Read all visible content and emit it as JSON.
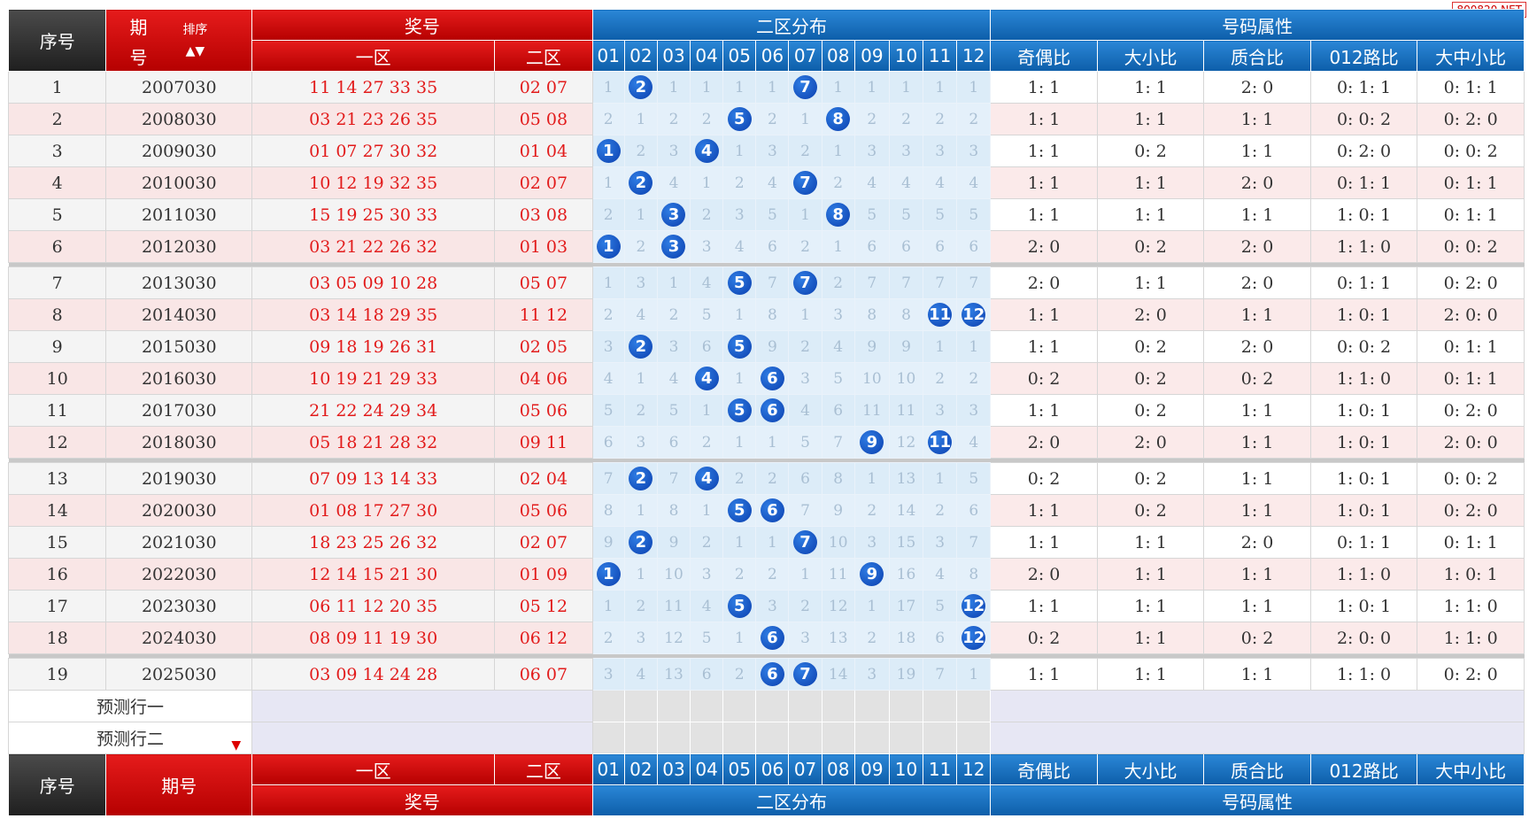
{
  "watermark": "800820.NET",
  "header": {
    "seq": "序号",
    "issue_top": "期",
    "issue_bottom": "号",
    "sort": "排序",
    "prize": "奖号",
    "zone1": "一区",
    "zone2": "二区",
    "dist": "二区分布",
    "attr": "号码属性",
    "cols": [
      "01",
      "02",
      "03",
      "04",
      "05",
      "06",
      "07",
      "08",
      "09",
      "10",
      "11",
      "12"
    ],
    "attr_cols": [
      "奇偶比",
      "大小比",
      "质合比",
      "012路比",
      "大中小比"
    ]
  },
  "footer": {
    "seq": "序号",
    "issue": "期号",
    "zone1": "一区",
    "zone2": "二区",
    "prize": "奖号",
    "dist": "二区分布",
    "attr": "号码属性"
  },
  "prediction_rows": [
    "预测行一",
    "预测行二"
  ],
  "chart_data": {
    "type": "table",
    "rows": [
      {
        "seq": "1",
        "issue": "2007030",
        "zone1": "11 14 27 33 35",
        "zone2": "02 07",
        "dist": [
          "1",
          "②",
          "1",
          "1",
          "1",
          "1",
          "⑦",
          "1",
          "1",
          "1",
          "1",
          "1"
        ],
        "attrs": [
          "1: 1",
          "1: 1",
          "2: 0",
          "0: 1: 1",
          "0: 1: 1"
        ]
      },
      {
        "seq": "2",
        "issue": "2008030",
        "zone1": "03 21 23 26 35",
        "zone2": "05 08",
        "dist": [
          "2",
          "1",
          "2",
          "2",
          "⑤",
          "2",
          "1",
          "⑧",
          "2",
          "2",
          "2",
          "2"
        ],
        "attrs": [
          "1: 1",
          "1: 1",
          "1: 1",
          "0: 0: 2",
          "0: 2: 0"
        ]
      },
      {
        "seq": "3",
        "issue": "2009030",
        "zone1": "01 07 27 30 32",
        "zone2": "01 04",
        "dist": [
          "①",
          "2",
          "3",
          "④",
          "1",
          "3",
          "2",
          "1",
          "3",
          "3",
          "3",
          "3"
        ],
        "attrs": [
          "1: 1",
          "0: 2",
          "1: 1",
          "0: 2: 0",
          "0: 0: 2"
        ]
      },
      {
        "seq": "4",
        "issue": "2010030",
        "zone1": "10 12 19 32 35",
        "zone2": "02 07",
        "dist": [
          "1",
          "②",
          "4",
          "1",
          "2",
          "4",
          "⑦",
          "2",
          "4",
          "4",
          "4",
          "4"
        ],
        "attrs": [
          "1: 1",
          "1: 1",
          "2: 0",
          "0: 1: 1",
          "0: 1: 1"
        ]
      },
      {
        "seq": "5",
        "issue": "2011030",
        "zone1": "15 19 25 30 33",
        "zone2": "03 08",
        "dist": [
          "2",
          "1",
          "③",
          "2",
          "3",
          "5",
          "1",
          "⑧",
          "5",
          "5",
          "5",
          "5"
        ],
        "attrs": [
          "1: 1",
          "1: 1",
          "1: 1",
          "1: 0: 1",
          "0: 1: 1"
        ]
      },
      {
        "seq": "6",
        "issue": "2012030",
        "zone1": "03 21 22 26 32",
        "zone2": "01 03",
        "dist": [
          "①",
          "2",
          "③",
          "3",
          "4",
          "6",
          "2",
          "1",
          "6",
          "6",
          "6",
          "6"
        ],
        "attrs": [
          "2: 0",
          "0: 2",
          "2: 0",
          "1: 1: 0",
          "0: 0: 2"
        ]
      },
      {
        "seq": "7",
        "issue": "2013030",
        "zone1": "03 05 09 10 28",
        "zone2": "05 07",
        "dist": [
          "1",
          "3",
          "1",
          "4",
          "⑤",
          "7",
          "⑦",
          "2",
          "7",
          "7",
          "7",
          "7"
        ],
        "attrs": [
          "2: 0",
          "1: 1",
          "2: 0",
          "0: 1: 1",
          "0: 2: 0"
        ]
      },
      {
        "seq": "8",
        "issue": "2014030",
        "zone1": "03 14 18 29 35",
        "zone2": "11 12",
        "dist": [
          "2",
          "4",
          "2",
          "5",
          "1",
          "8",
          "1",
          "3",
          "8",
          "8",
          "⑪",
          "⑫"
        ],
        "attrs": [
          "1: 1",
          "2: 0",
          "1: 1",
          "1: 0: 1",
          "2: 0: 0"
        ]
      },
      {
        "seq": "9",
        "issue": "2015030",
        "zone1": "09 18 19 26 31",
        "zone2": "02 05",
        "dist": [
          "3",
          "②",
          "3",
          "6",
          "⑤",
          "9",
          "2",
          "4",
          "9",
          "9",
          "1",
          "1"
        ],
        "attrs": [
          "1: 1",
          "0: 2",
          "2: 0",
          "0: 0: 2",
          "0: 1: 1"
        ]
      },
      {
        "seq": "10",
        "issue": "2016030",
        "zone1": "10 19 21 29 33",
        "zone2": "04 06",
        "dist": [
          "4",
          "1",
          "4",
          "④",
          "1",
          "⑥",
          "3",
          "5",
          "10",
          "10",
          "2",
          "2"
        ],
        "attrs": [
          "0: 2",
          "0: 2",
          "0: 2",
          "1: 1: 0",
          "0: 1: 1"
        ]
      },
      {
        "seq": "11",
        "issue": "2017030",
        "zone1": "21 22 24 29 34",
        "zone2": "05 06",
        "dist": [
          "5",
          "2",
          "5",
          "1",
          "⑤",
          "⑥",
          "4",
          "6",
          "11",
          "11",
          "3",
          "3"
        ],
        "attrs": [
          "1: 1",
          "0: 2",
          "1: 1",
          "1: 0: 1",
          "0: 2: 0"
        ]
      },
      {
        "seq": "12",
        "issue": "2018030",
        "zone1": "05 18 21 28 32",
        "zone2": "09 11",
        "dist": [
          "6",
          "3",
          "6",
          "2",
          "1",
          "1",
          "5",
          "7",
          "⑨",
          "12",
          "⑪",
          "4"
        ],
        "attrs": [
          "2: 0",
          "2: 0",
          "1: 1",
          "1: 0: 1",
          "2: 0: 0"
        ]
      },
      {
        "seq": "13",
        "issue": "2019030",
        "zone1": "07 09 13 14 33",
        "zone2": "02 04",
        "dist": [
          "7",
          "②",
          "7",
          "④",
          "2",
          "2",
          "6",
          "8",
          "1",
          "13",
          "1",
          "5"
        ],
        "attrs": [
          "0: 2",
          "0: 2",
          "1: 1",
          "1: 0: 1",
          "0: 0: 2"
        ]
      },
      {
        "seq": "14",
        "issue": "2020030",
        "zone1": "01 08 17 27 30",
        "zone2": "05 06",
        "dist": [
          "8",
          "1",
          "8",
          "1",
          "⑤",
          "⑥",
          "7",
          "9",
          "2",
          "14",
          "2",
          "6"
        ],
        "attrs": [
          "1: 1",
          "0: 2",
          "1: 1",
          "1: 0: 1",
          "0: 2: 0"
        ]
      },
      {
        "seq": "15",
        "issue": "2021030",
        "zone1": "18 23 25 26 32",
        "zone2": "02 07",
        "dist": [
          "9",
          "②",
          "9",
          "2",
          "1",
          "1",
          "⑦",
          "10",
          "3",
          "15",
          "3",
          "7"
        ],
        "attrs": [
          "1: 1",
          "1: 1",
          "2: 0",
          "0: 1: 1",
          "0: 1: 1"
        ]
      },
      {
        "seq": "16",
        "issue": "2022030",
        "zone1": "12 14 15 21 30",
        "zone2": "01 09",
        "dist": [
          "①",
          "1",
          "10",
          "3",
          "2",
          "2",
          "1",
          "11",
          "⑨",
          "16",
          "4",
          "8"
        ],
        "attrs": [
          "2: 0",
          "1: 1",
          "1: 1",
          "1: 1: 0",
          "1: 0: 1"
        ]
      },
      {
        "seq": "17",
        "issue": "2023030",
        "zone1": "06 11 12 20 35",
        "zone2": "05 12",
        "dist": [
          "1",
          "2",
          "11",
          "4",
          "⑤",
          "3",
          "2",
          "12",
          "1",
          "17",
          "5",
          "⑫"
        ],
        "attrs": [
          "1: 1",
          "1: 1",
          "1: 1",
          "1: 0: 1",
          "1: 1: 0"
        ]
      },
      {
        "seq": "18",
        "issue": "2024030",
        "zone1": "08 09 11 19 30",
        "zone2": "06 12",
        "dist": [
          "2",
          "3",
          "12",
          "5",
          "1",
          "⑥",
          "3",
          "13",
          "2",
          "18",
          "6",
          "⑫"
        ],
        "attrs": [
          "0: 2",
          "1: 1",
          "0: 2",
          "2: 0: 0",
          "1: 1: 0"
        ]
      },
      {
        "seq": "19",
        "issue": "2025030",
        "zone1": "03 09 14 24 28",
        "zone2": "06 07",
        "dist": [
          "3",
          "4",
          "13",
          "6",
          "2",
          "⑥",
          "⑦",
          "14",
          "3",
          "19",
          "7",
          "1"
        ],
        "attrs": [
          "1: 1",
          "1: 1",
          "1: 1",
          "1: 1: 0",
          "0: 2: 0"
        ]
      }
    ],
    "group_separators_after": [
      6,
      12,
      18
    ]
  }
}
